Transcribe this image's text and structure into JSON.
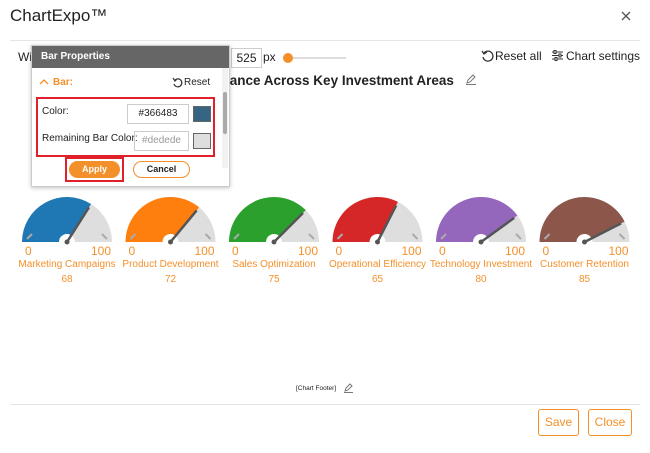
{
  "header": {
    "title": "ChartExpo™"
  },
  "toolbar": {
    "width_label": "Width:",
    "width_value": "525",
    "unit": "px",
    "reset_all": "Reset all",
    "chart_settings": "Chart settings"
  },
  "panel": {
    "title": "Bar Properties",
    "section": "Bar:",
    "reset": "Reset",
    "color_label": "Color:",
    "color_value": "#366483",
    "remaining_label": "Remaining Bar Color:",
    "remaining_placeholder": "#dedede",
    "apply": "Apply",
    "cancel": "Cancel"
  },
  "chart_data": {
    "type": "gauge",
    "title": "Performance Across Key Investment Areas",
    "footer": "[Chart Footer]",
    "categories": [
      "Marketing Campaigns",
      "Product Development",
      "Sales Optimization",
      "Operational Efficiency",
      "Technology Investment",
      "Customer Retention"
    ],
    "values": [
      68,
      72,
      75,
      65,
      80,
      85
    ],
    "colors": [
      "#1f77b4",
      "#ff7f0e",
      "#2ca02c",
      "#d62728",
      "#9467bd",
      "#8c564b"
    ],
    "remaining_color": "#dedede",
    "range": [
      0,
      100
    ]
  },
  "footer": {
    "save": "Save",
    "close": "Close"
  }
}
